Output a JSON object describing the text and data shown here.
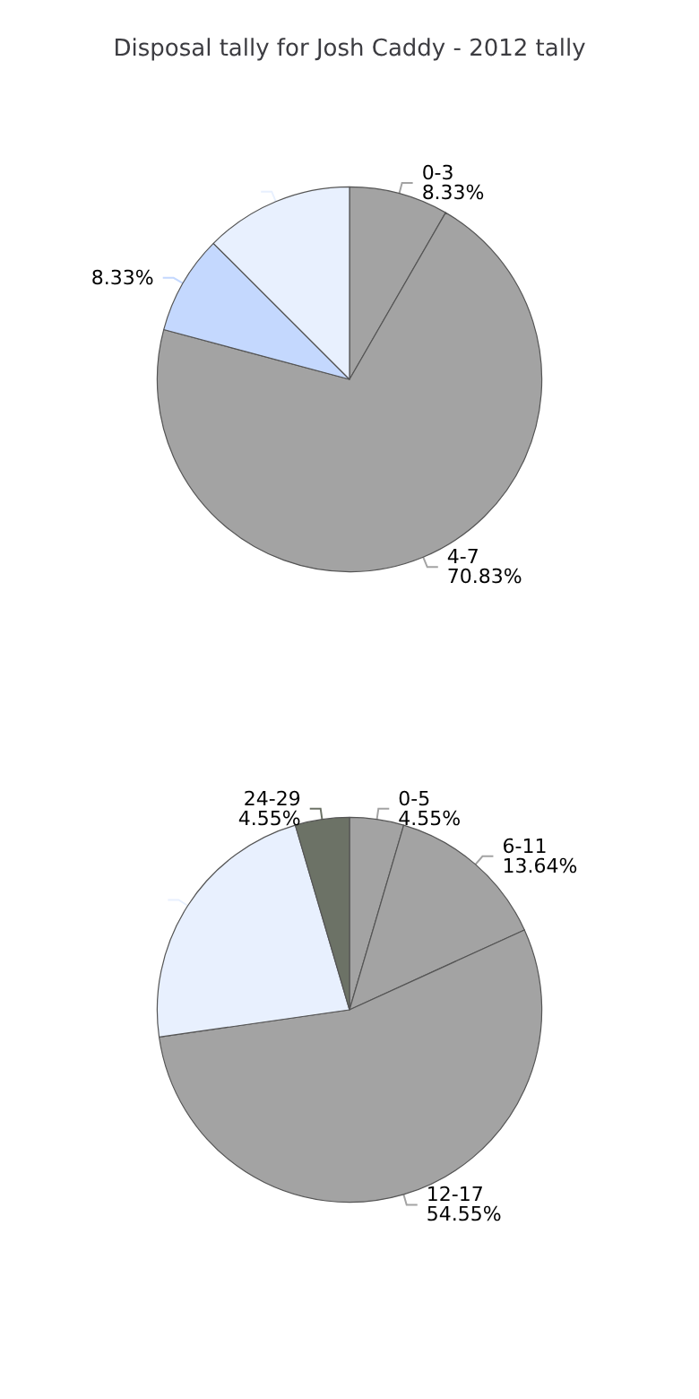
{
  "chart_data": [
    {
      "type": "pie",
      "title": "Disposal tally for Josh Caddy - 2012 tally",
      "categories": [
        "0-3",
        "4-7",
        null,
        null
      ],
      "values": [
        8.33,
        70.83,
        8.33,
        12.51
      ],
      "value_labels": [
        "8.33%",
        "70.83%",
        "8.33%",
        null
      ],
      "colors": [
        "#a3a3a3",
        "#a3a3a3",
        "#c4d8fe",
        "#e8f0fe"
      ],
      "legend": false
    },
    {
      "type": "pie",
      "categories": [
        "0-5",
        "6-11",
        "12-17",
        null,
        "24-29"
      ],
      "values": [
        4.55,
        13.64,
        54.55,
        22.72,
        4.55
      ],
      "value_labels": [
        "4.55%",
        "13.64%",
        "54.55%",
        null,
        "4.55%"
      ],
      "colors": [
        "#a3a3a3",
        "#a3a3a3",
        "#a3a3a3",
        "#e8f0fe",
        "#6c7266"
      ],
      "legend": false
    }
  ]
}
